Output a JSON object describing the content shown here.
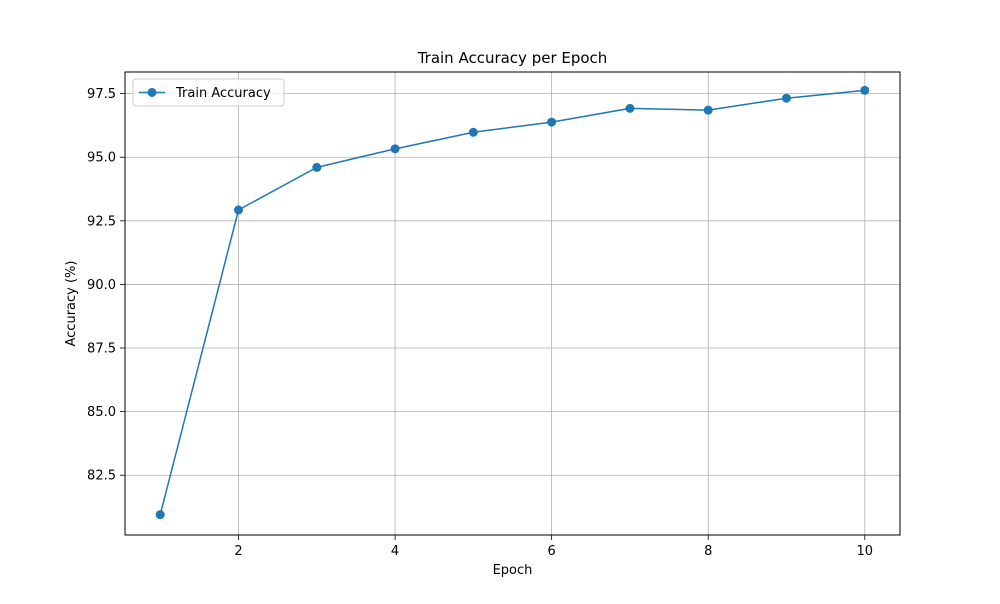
{
  "chart_data": {
    "type": "line",
    "title": "Train Accuracy per Epoch",
    "xlabel": "Epoch",
    "ylabel": "Accuracy (%)",
    "xlim": [
      0.55,
      10.45
    ],
    "ylim": [
      80.15,
      98.35
    ],
    "xticks": [
      2,
      4,
      6,
      8,
      10
    ],
    "yticks": [
      82.5,
      85.0,
      87.5,
      90.0,
      92.5,
      95.0,
      97.5
    ],
    "ytick_labels": [
      "82.5",
      "85.0",
      "87.5",
      "90.0",
      "92.5",
      "95.0",
      "97.5"
    ],
    "grid": true,
    "legend": "top-left",
    "series": [
      {
        "name": "Train Accuracy",
        "color": "#1f77b4",
        "marker": "circle",
        "x": [
          1,
          2,
          3,
          4,
          5,
          6,
          7,
          8,
          9,
          10
        ],
        "values": [
          80.95,
          92.93,
          94.6,
          95.33,
          95.98,
          96.38,
          96.92,
          96.85,
          97.32,
          97.63
        ]
      }
    ]
  }
}
